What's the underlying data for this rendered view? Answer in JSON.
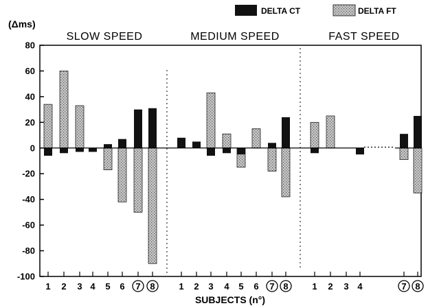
{
  "chart_data": {
    "type": "bar",
    "title": "",
    "ylabel": "(Δms)",
    "xlabel": "SUBJECTS (n°)",
    "ylim": [
      -100,
      80
    ],
    "yticks": [
      80,
      60,
      40,
      20,
      0,
      -20,
      -40,
      -60,
      -80,
      -100
    ],
    "grid": false,
    "legend_position": "top-right",
    "series": [
      {
        "name": "DELTA CT",
        "color": "#111111",
        "pattern": "solid"
      },
      {
        "name": "DELTA FT",
        "color": "#bdbdbd",
        "pattern": "stippled"
      }
    ],
    "groups": [
      {
        "label": "SLOW SPEED",
        "categories": [
          "1",
          "2",
          "3",
          "4",
          "5",
          "6",
          "7",
          "8"
        ],
        "circled": [
          "7",
          "8"
        ],
        "delta_ct": [
          -6,
          -4,
          -3,
          -3,
          3,
          7,
          30,
          31
        ],
        "delta_ft": [
          34,
          60,
          33,
          0,
          -17,
          -42,
          -50,
          -90
        ]
      },
      {
        "label": "MEDIUM SPEED",
        "categories": [
          "1",
          "2",
          "3",
          "4",
          "5",
          "6",
          "7",
          "8"
        ],
        "circled": [
          "7",
          "8"
        ],
        "delta_ct": [
          8,
          5,
          -6,
          -4,
          -5,
          0,
          4,
          24
        ],
        "delta_ft": [
          0,
          0,
          43,
          11,
          -15,
          15,
          -18,
          -38
        ]
      },
      {
        "label": "FAST SPEED",
        "categories": [
          "1",
          "2",
          "3",
          "4",
          "",
          "",
          "7",
          "8"
        ],
        "circled": [
          "7",
          "8"
        ],
        "delta_ct": [
          -4,
          0,
          0,
          -5,
          null,
          null,
          11,
          25
        ],
        "delta_ft": [
          20,
          25,
          0,
          0,
          null,
          null,
          -9,
          -35
        ]
      }
    ]
  },
  "colors": {
    "ct_fill": "#111111",
    "ft_fill": "#bdbdbd",
    "ft_stipple": "#5a5a5a"
  }
}
